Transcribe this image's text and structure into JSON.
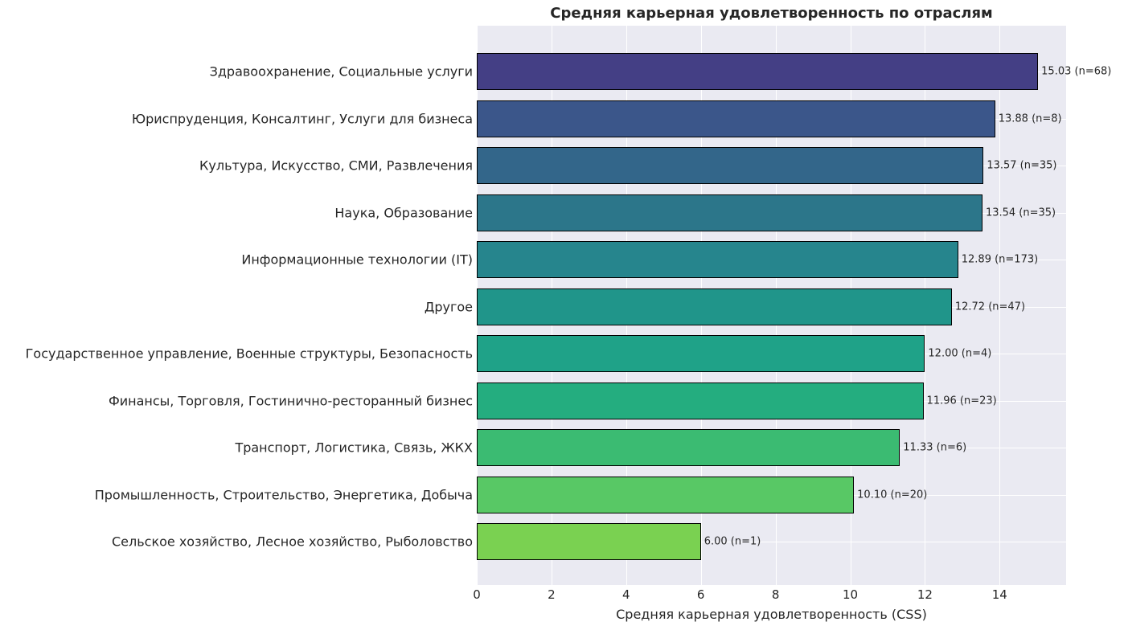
{
  "chart_data": {
    "type": "bar",
    "orientation": "horizontal",
    "title": "Средняя карьерная удовлетворенность по отраслям",
    "xlabel": "Средняя карьерная удовлетворенность (CSS)",
    "ylabel": "",
    "xlim": [
      0,
      15.78
    ],
    "xticks": [
      "0",
      "2",
      "4",
      "6",
      "8",
      "10",
      "12",
      "14"
    ],
    "grid": true,
    "legend": null,
    "categories": [
      "Здравоохранение, Социальные услуги",
      "Юриспруденция, Консалтинг, Услуги для бизнеса",
      "Культура, Искусство, СМИ, Развлечения",
      "Наука, Образование",
      "Информационные технологии (IT)",
      "Другое",
      "Государственное управление, Военные структуры, Безопасность",
      "Финансы, Торговля, Гостинично-ресторанный бизнес",
      "Транспорт, Логистика, Связь, ЖКХ",
      "Промышленность, Строительство, Энергетика, Добыча",
      "Сельское хозяйство, Лесное хозяйство, Рыболовство"
    ],
    "values": [
      15.03,
      13.88,
      13.57,
      13.54,
      12.89,
      12.72,
      12.0,
      11.96,
      11.33,
      10.1,
      6.0
    ],
    "n": [
      68,
      8,
      35,
      35,
      173,
      47,
      4,
      23,
      6,
      20,
      1
    ],
    "data_labels": [
      "15.03 (n=68)",
      "13.88 (n=8)",
      "13.57 (n=35)",
      "13.54 (n=35)",
      "12.89 (n=173)",
      "12.72 (n=47)",
      "12.00 (n=4)",
      "11.96 (n=23)",
      "11.33 (n=6)",
      "10.10 (n=20)",
      "6.00 (n=1)"
    ],
    "colors": [
      "#443f85",
      "#3b568a",
      "#33668a",
      "#2c768a",
      "#26858d",
      "#20958a",
      "#1fa288",
      "#24ad7f",
      "#3bbb72",
      "#58c865",
      "#7ad151"
    ],
    "background": "#eaeaf2"
  }
}
